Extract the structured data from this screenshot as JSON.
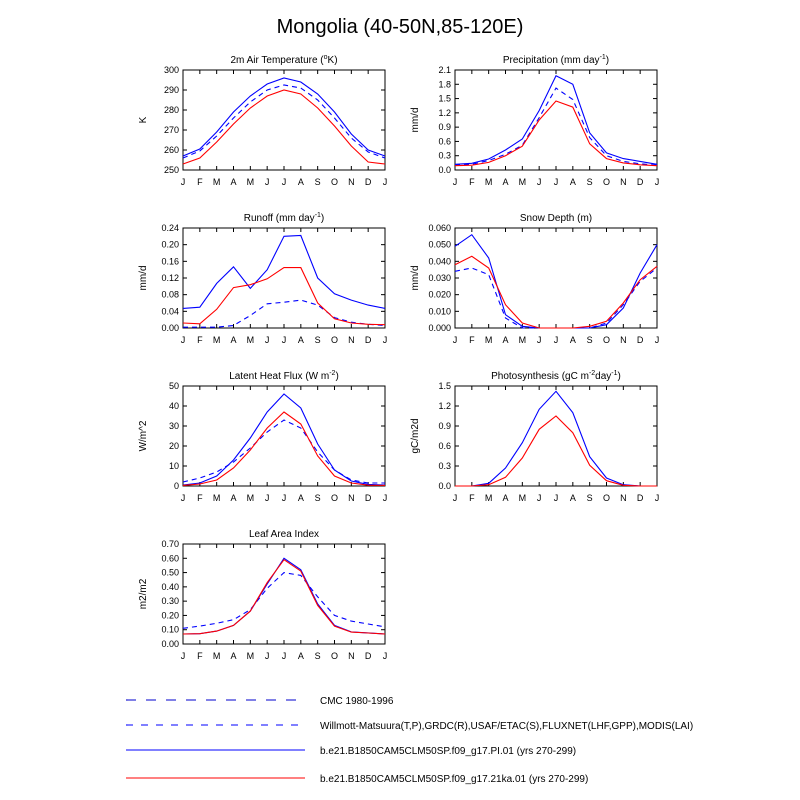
{
  "title": "Mongolia (40-50N,85-120E)",
  "months": [
    "J",
    "F",
    "M",
    "A",
    "M",
    "J",
    "J",
    "A",
    "S",
    "O",
    "N",
    "D",
    "J"
  ],
  "colors": {
    "cmc": "#0000cc",
    "willmott": "#0000ff",
    "pi": "#0000ff",
    "ka21": "#ff0000"
  },
  "legend": [
    {
      "key": "cmc",
      "label": "CMC 1980-1996",
      "dash": "long"
    },
    {
      "key": "willmott",
      "label": "Willmott-Matsuura(T,P),GRDC(R),USAF/ETAC(S),FLUXNET(LHF,GPP),MODIS(LAI)",
      "dash": "short"
    },
    {
      "key": "pi",
      "label": "b.e21.B1850CAM5CLM50SP.f09_g17.PI.01 (yrs 270-299)",
      "dash": "solid"
    },
    {
      "key": "ka21",
      "label": "b.e21.B1850CAM5CLM50SP.f09_g17.21ka.01 (yrs 270-299)",
      "dash": "solid"
    }
  ],
  "chart_data": [
    {
      "type": "line",
      "title_main": "2m Air Temperature (",
      "title_sup": "o",
      "title_end": "K)",
      "ylabel": "K",
      "ylim": [
        250,
        300
      ],
      "yticks": [
        "250",
        "260",
        "270",
        "280",
        "290",
        "300"
      ],
      "series": [
        {
          "name": "obs",
          "style": "willmott",
          "values": [
            256,
            259.5,
            267,
            276,
            284,
            290,
            292.5,
            291,
            285,
            276,
            266,
            259,
            256
          ]
        },
        {
          "name": "PI.01",
          "style": "pi",
          "values": [
            257,
            260.5,
            269,
            279,
            287,
            293,
            296,
            294,
            288,
            279,
            268,
            260,
            257
          ]
        },
        {
          "name": "21ka.01",
          "style": "ka21",
          "values": [
            253,
            256,
            264,
            273,
            281,
            287,
            290,
            288,
            281,
            272,
            262,
            254,
            253
          ]
        }
      ]
    },
    {
      "type": "line",
      "title_main": "Precipitation (mm day",
      "title_sup": "-1",
      "title_end": ")",
      "ylabel": "mm/d",
      "ylim": [
        0,
        2.1
      ],
      "yticks": [
        "0.0",
        "0.3",
        "0.6",
        "0.9",
        "1.2",
        "1.5",
        "1.8",
        "2.1"
      ],
      "series": [
        {
          "name": "obs",
          "style": "willmott",
          "values": [
            0.1,
            0.12,
            0.2,
            0.33,
            0.52,
            1.1,
            1.72,
            1.48,
            0.68,
            0.3,
            0.18,
            0.13,
            0.1
          ]
        },
        {
          "name": "PI.01",
          "style": "pi",
          "values": [
            0.12,
            0.14,
            0.23,
            0.42,
            0.65,
            1.25,
            1.98,
            1.8,
            0.78,
            0.36,
            0.24,
            0.18,
            0.12
          ]
        },
        {
          "name": "21ka.01",
          "style": "ka21",
          "values": [
            0.09,
            0.1,
            0.16,
            0.3,
            0.5,
            1.05,
            1.45,
            1.32,
            0.55,
            0.24,
            0.15,
            0.11,
            0.09
          ]
        }
      ]
    },
    {
      "type": "line",
      "title_main": "Runoff (mm day",
      "title_sup": "-1",
      "title_end": ")",
      "ylabel": "mm/d",
      "ylim": [
        0,
        0.24
      ],
      "yticks": [
        "0.00",
        "0.04",
        "0.08",
        "0.12",
        "0.16",
        "0.20",
        "0.24"
      ],
      "series": [
        {
          "name": "obs",
          "style": "willmott",
          "values": [
            0.002,
            0.002,
            0.002,
            0.006,
            0.03,
            0.058,
            0.062,
            0.067,
            0.055,
            0.025,
            0.014,
            0.009,
            0.006
          ]
        },
        {
          "name": "PI.01",
          "style": "pi",
          "values": [
            0.047,
            0.05,
            0.107,
            0.147,
            0.095,
            0.14,
            0.22,
            0.222,
            0.12,
            0.082,
            0.067,
            0.055,
            0.047
          ]
        },
        {
          "name": "21ka.01",
          "style": "ka21",
          "values": [
            0.012,
            0.01,
            0.045,
            0.097,
            0.104,
            0.118,
            0.145,
            0.145,
            0.06,
            0.022,
            0.012,
            0.009,
            0.008
          ]
        }
      ]
    },
    {
      "type": "line",
      "title_main": "Snow Depth (m)",
      "title_sup": "",
      "title_end": "",
      "ylabel": "mm/d",
      "ylim": [
        0,
        0.06
      ],
      "yticks": [
        "0.000",
        "0.010",
        "0.020",
        "0.030",
        "0.040",
        "0.050",
        "0.060"
      ],
      "series": [
        {
          "name": "obs",
          "style": "willmott",
          "values": [
            0.034,
            0.036,
            0.032,
            0.006,
            0.0,
            0.0,
            0.0,
            0.0,
            0.0,
            0.003,
            0.014,
            0.028,
            0.036
          ]
        },
        {
          "name": "PI.01",
          "style": "pi",
          "values": [
            0.049,
            0.056,
            0.042,
            0.008,
            0.001,
            0.0,
            0.0,
            0.0,
            0.0,
            0.002,
            0.012,
            0.033,
            0.05
          ]
        },
        {
          "name": "21ka.01",
          "style": "ka21",
          "values": [
            0.038,
            0.043,
            0.036,
            0.014,
            0.003,
            0.0,
            0.0,
            0.0,
            0.001,
            0.004,
            0.015,
            0.029,
            0.037
          ]
        }
      ]
    },
    {
      "type": "line",
      "title_main": "Latent Heat Flux (W m",
      "title_sup": "-2",
      "title_end": ")",
      "ylabel": "W/m^2",
      "ylim": [
        0,
        50
      ],
      "yticks": [
        "0",
        "10",
        "20",
        "30",
        "40",
        "50"
      ],
      "series": [
        {
          "name": "obs",
          "style": "willmott",
          "values": [
            2,
            4,
            7,
            12,
            19,
            27,
            33,
            29,
            17,
            8,
            3,
            1.5,
            1.5
          ]
        },
        {
          "name": "PI.01",
          "style": "pi",
          "values": [
            0.5,
            1.5,
            5,
            13,
            24,
            37,
            46,
            39,
            21,
            8,
            2.5,
            0.8,
            0.5
          ]
        },
        {
          "name": "21ka.01",
          "style": "ka21",
          "values": [
            0.3,
            1,
            3,
            9,
            18,
            29,
            37,
            31,
            15,
            5,
            1.5,
            0.4,
            0.3
          ]
        }
      ]
    },
    {
      "type": "line",
      "title_main": "Photosynthesis (gC m",
      "title_sup": "-2",
      "title_end": "day",
      "title_sup2": "-1",
      "title_end2": ")",
      "ylabel": "gC/m2d",
      "ylim": [
        0,
        1.5
      ],
      "yticks": [
        "0.0",
        "0.3",
        "0.6",
        "0.9",
        "1.2",
        "1.5"
      ],
      "series": [
        {
          "name": "PI.01",
          "style": "pi",
          "values": [
            0,
            0,
            0.04,
            0.27,
            0.65,
            1.15,
            1.42,
            1.1,
            0.44,
            0.12,
            0.02,
            0,
            0
          ]
        },
        {
          "name": "21ka.01",
          "style": "ka21",
          "values": [
            0,
            0,
            0.02,
            0.13,
            0.42,
            0.85,
            1.05,
            0.8,
            0.31,
            0.08,
            0.01,
            0,
            0
          ]
        }
      ]
    },
    {
      "type": "line",
      "title_main": "Leaf Area Index",
      "title_sup": "",
      "title_end": "",
      "ylabel": "m2/m2",
      "ylim": [
        0,
        0.7
      ],
      "yticks": [
        "0.00",
        "0.10",
        "0.20",
        "0.30",
        "0.40",
        "0.50",
        "0.60",
        "0.70"
      ],
      "series": [
        {
          "name": "obs",
          "style": "willmott",
          "values": [
            0.11,
            0.125,
            0.145,
            0.17,
            0.24,
            0.39,
            0.5,
            0.48,
            0.33,
            0.2,
            0.16,
            0.14,
            0.12
          ]
        },
        {
          "name": "PI.01",
          "style": "pi",
          "values": [
            0.07,
            0.072,
            0.09,
            0.13,
            0.23,
            0.42,
            0.6,
            0.52,
            0.28,
            0.13,
            0.085,
            0.078,
            0.07
          ]
        },
        {
          "name": "21ka.01",
          "style": "ka21",
          "values": [
            0.07,
            0.072,
            0.09,
            0.13,
            0.23,
            0.43,
            0.59,
            0.51,
            0.27,
            0.125,
            0.083,
            0.077,
            0.07
          ]
        }
      ]
    }
  ]
}
